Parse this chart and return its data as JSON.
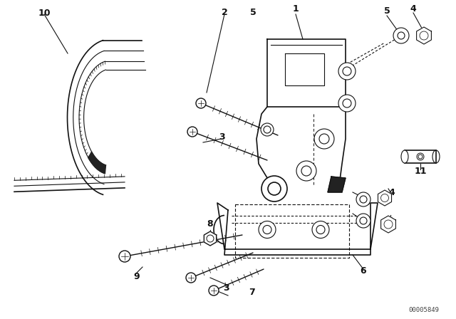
{
  "background_color": "#ffffff",
  "line_color": "#111111",
  "watermark": "00005849",
  "figsize": [
    6.4,
    4.48
  ],
  "dpi": 100
}
